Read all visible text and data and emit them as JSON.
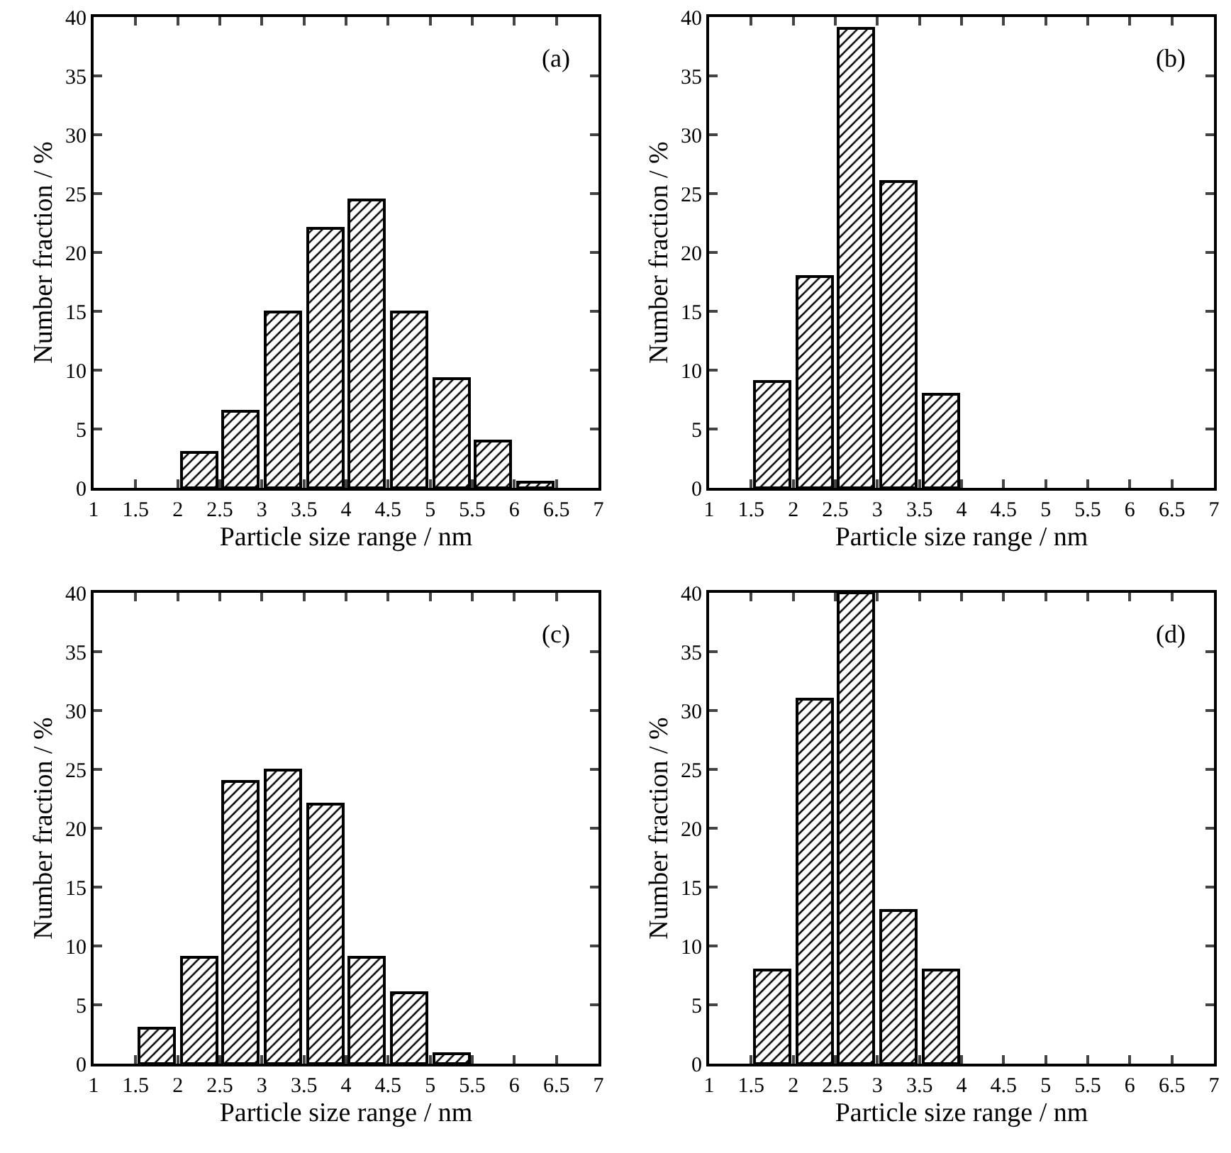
{
  "chart_data": [
    {
      "type": "histogram",
      "xlabel": "Particle size range / nm",
      "ylabel": "Number fraction / %",
      "annotations": [
        "(a)"
      ],
      "color": "#000000",
      "bins": [
        2,
        2.5,
        3,
        3.5,
        4,
        4.5,
        5,
        5.5,
        6,
        6.5
      ],
      "values": [
        3,
        6.5,
        15,
        22,
        24.5,
        15,
        9.3,
        4,
        0.5
      ],
      "xlim": [
        1,
        7
      ],
      "xticks": [
        1,
        1.5,
        2,
        2.5,
        3,
        3.5,
        4,
        4.5,
        5,
        5.5,
        6,
        6.5,
        7
      ],
      "ylim": [
        0,
        40
      ],
      "yticks": [
        0,
        5,
        10,
        15,
        20,
        25,
        30,
        35,
        40
      ]
    },
    {
      "type": "histogram",
      "xlabel": "Particle size range / nm",
      "ylabel": "Number fraction / %",
      "annotations": [
        "(b)"
      ],
      "color": "#000000",
      "bins": [
        1.5,
        2,
        2.5,
        3,
        3.5,
        4
      ],
      "values": [
        9,
        18,
        39,
        26,
        8
      ],
      "xlim": [
        1,
        7
      ],
      "xticks": [
        1,
        1.5,
        2,
        2.5,
        3,
        3.5,
        4,
        4.5,
        5,
        5.5,
        6,
        6.5,
        7
      ],
      "ylim": [
        0,
        40
      ],
      "yticks": [
        0,
        5,
        10,
        15,
        20,
        25,
        30,
        35,
        40
      ]
    },
    {
      "type": "histogram",
      "xlabel": "Particle size range / nm",
      "ylabel": "Number fraction / %",
      "annotations": [
        "(c)"
      ],
      "color": "#000000",
      "bins": [
        1.5,
        2,
        2.5,
        3,
        3.5,
        4,
        4.5,
        5,
        5.5
      ],
      "values": [
        3,
        9,
        24,
        25,
        22,
        9,
        6,
        0.8
      ],
      "xlim": [
        1,
        7
      ],
      "xticks": [
        1,
        1.5,
        2,
        2.5,
        3,
        3.5,
        4,
        4.5,
        5,
        5.5,
        6,
        6.5,
        7
      ],
      "ylim": [
        0,
        40
      ],
      "yticks": [
        0,
        5,
        10,
        15,
        20,
        25,
        30,
        35,
        40
      ]
    },
    {
      "type": "histogram",
      "xlabel": "Particle size range / nm",
      "ylabel": "Number fraction / %",
      "annotations": [
        "(d)"
      ],
      "color": "#000000",
      "bins": [
        1.5,
        2,
        2.5,
        3,
        3.5,
        4
      ],
      "values": [
        8,
        31,
        40,
        13,
        8
      ],
      "xlim": [
        1,
        7
      ],
      "xticks": [
        1,
        1.5,
        2,
        2.5,
        3,
        3.5,
        4,
        4.5,
        5,
        5.5,
        6,
        6.5,
        7
      ],
      "ylim": [
        0,
        40
      ],
      "yticks": [
        0,
        5,
        10,
        15,
        20,
        25,
        30,
        35,
        40
      ]
    }
  ]
}
